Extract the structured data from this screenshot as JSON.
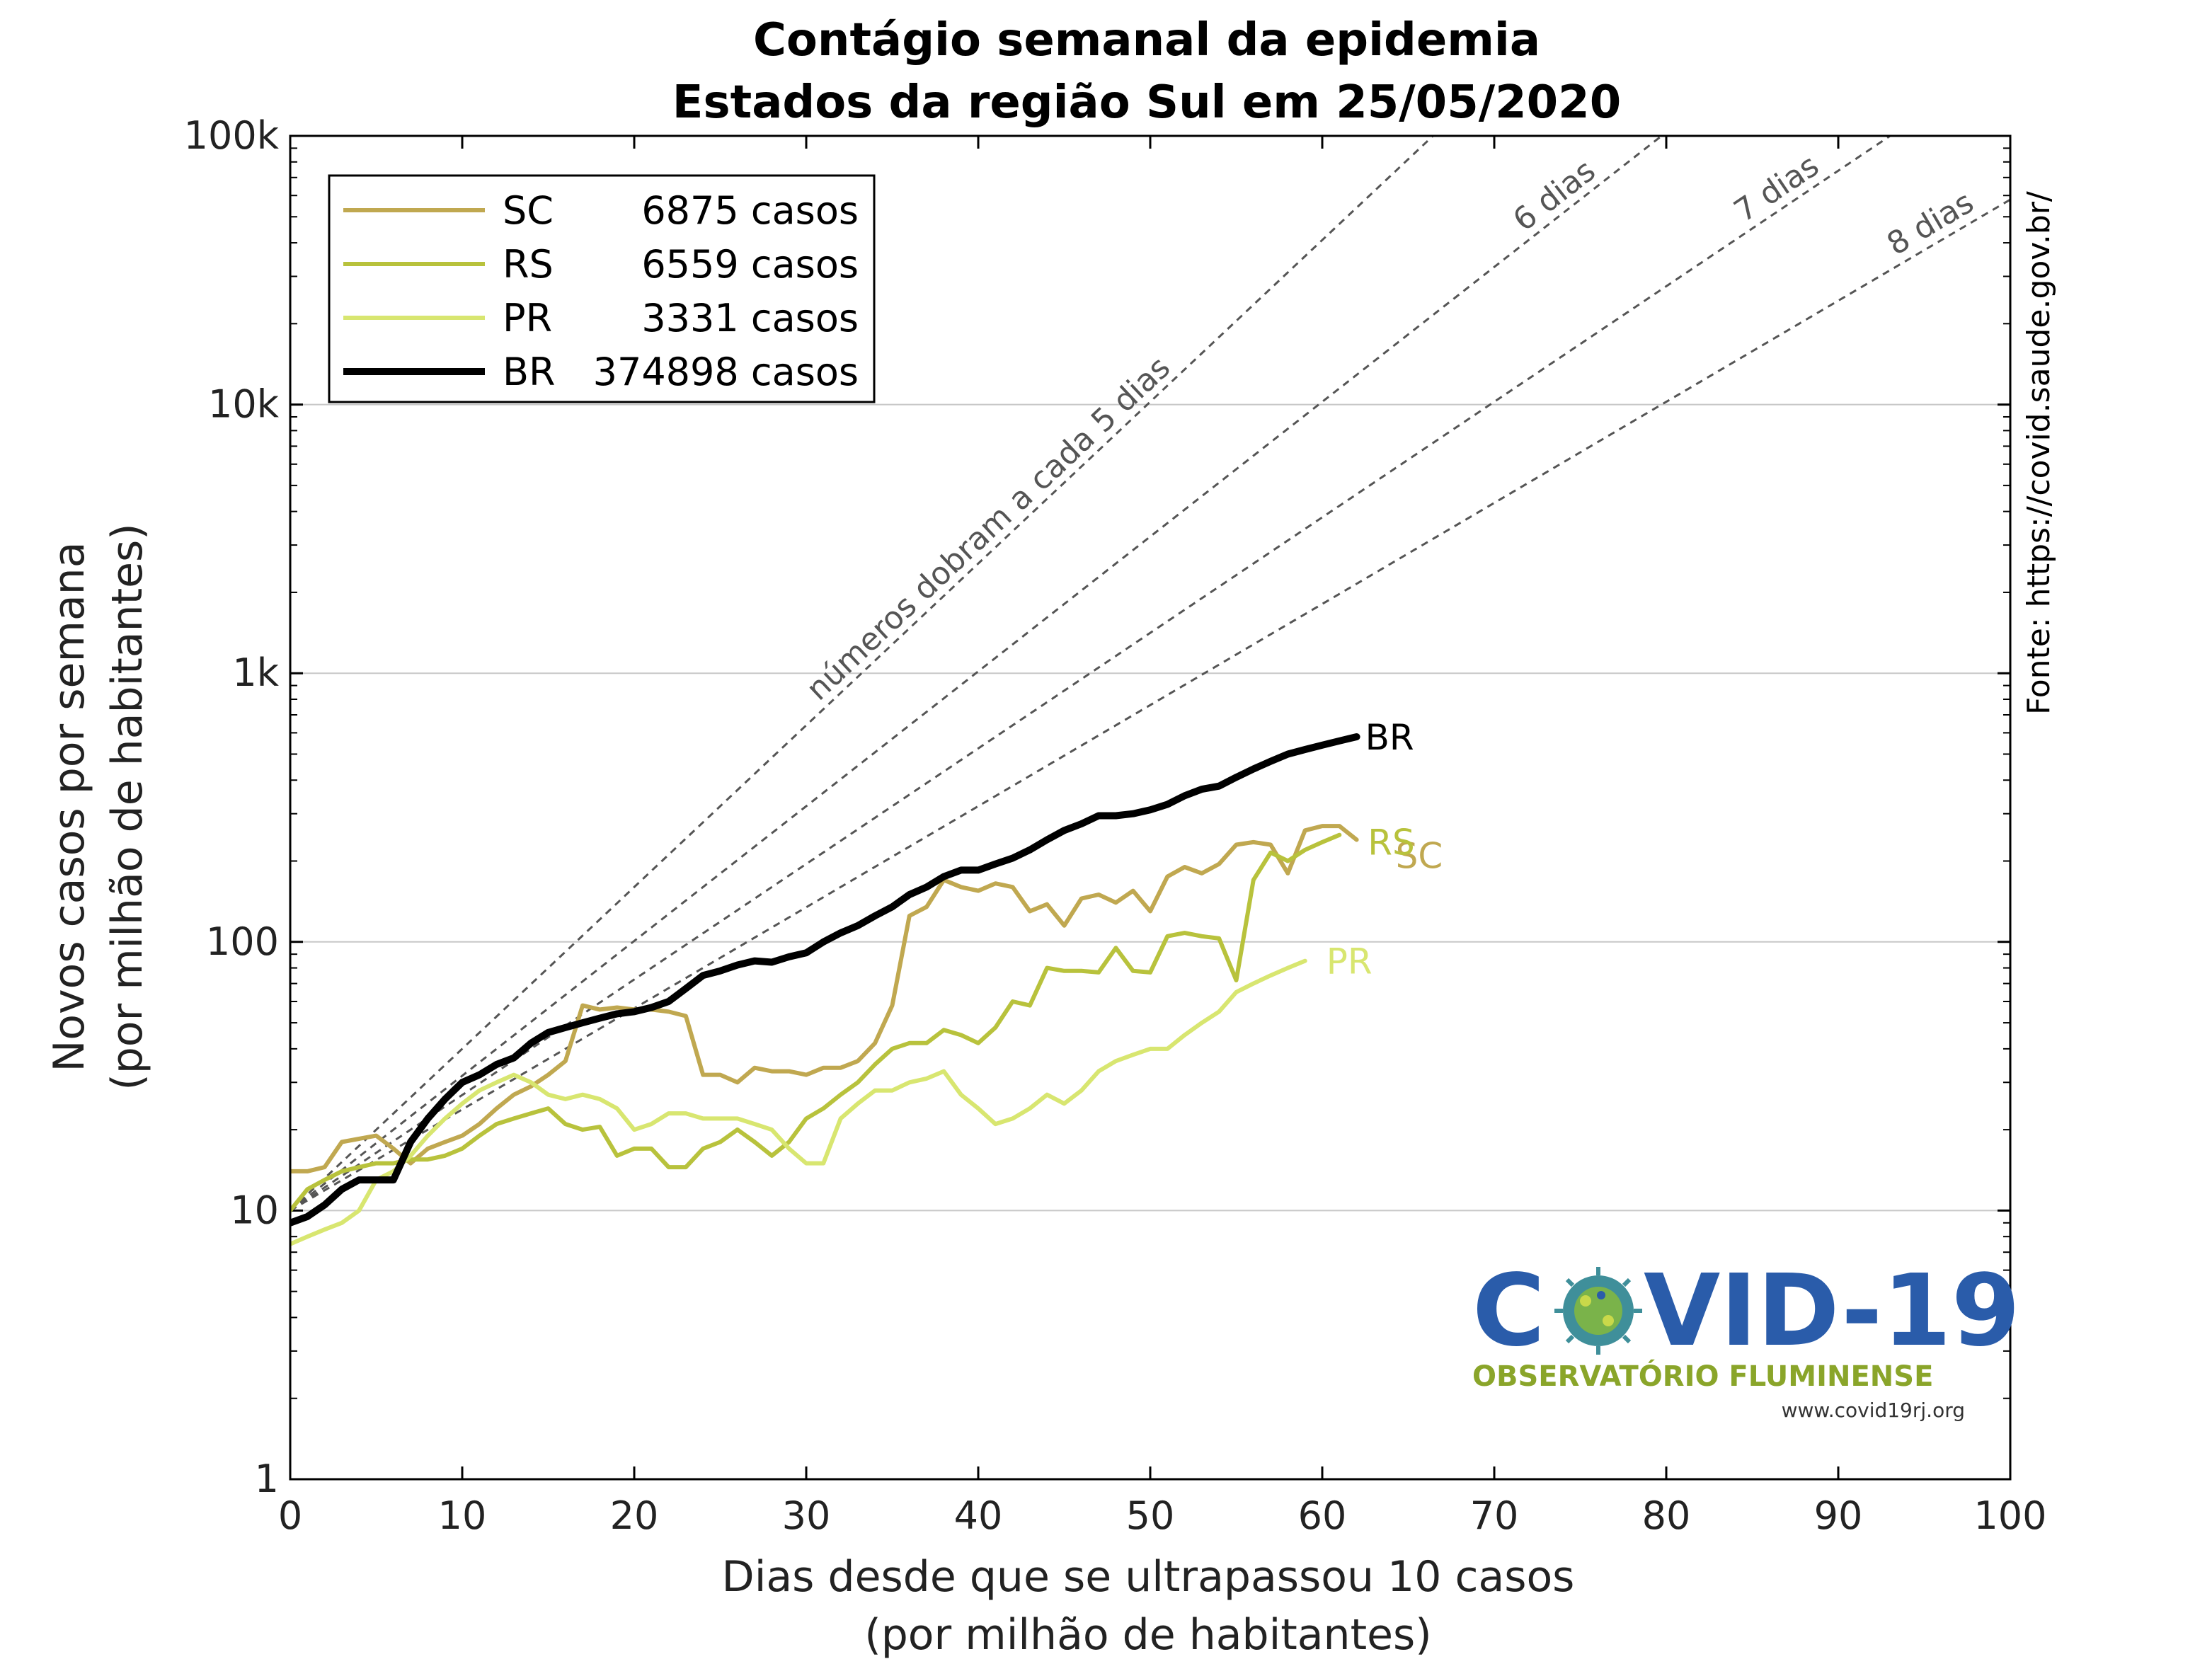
{
  "colors": {
    "SC": "#c0a850",
    "RS": "#b8c23c",
    "PR": "#d8e670",
    "BR": "#000000",
    "ref": "#555555",
    "logo_blue": "#2a5caa",
    "logo_green": "#8aa52a"
  },
  "chart_data": {
    "type": "line",
    "title": "Contágio semanal da epidemia",
    "subtitle": "Estados da região Sul em 25/05/2020",
    "xlabel_line1": "Dias desde que se ultrapassou 10 casos",
    "xlabel_line2": "(por milhão de habitantes)",
    "ylabel_line1": "Novos casos por semana",
    "ylabel_line2": "(por milhão de habitantes)",
    "xlim": [
      0,
      100
    ],
    "ylim": [
      1,
      100000
    ],
    "yscale": "log",
    "grid": "horizontal",
    "legend_position": "top-left",
    "xticks": [
      {
        "v": 0,
        "label": "0"
      },
      {
        "v": 10,
        "label": "10"
      },
      {
        "v": 20,
        "label": "20"
      },
      {
        "v": 30,
        "label": "30"
      },
      {
        "v": 40,
        "label": "40"
      },
      {
        "v": 50,
        "label": "50"
      },
      {
        "v": 60,
        "label": "60"
      },
      {
        "v": 70,
        "label": "70"
      },
      {
        "v": 80,
        "label": "80"
      },
      {
        "v": 90,
        "label": "90"
      },
      {
        "v": 100,
        "label": "100"
      }
    ],
    "yticks": [
      {
        "v": 1,
        "label": "1"
      },
      {
        "v": 10,
        "label": "10"
      },
      {
        "v": 100,
        "label": "100"
      },
      {
        "v": 1000,
        "label": "1k"
      },
      {
        "v": 10000,
        "label": "10k"
      },
      {
        "v": 100000,
        "label": "100k"
      }
    ],
    "series": [
      {
        "name": "SC",
        "cases": "6875 casos",
        "end_label": "SC",
        "x": [
          0,
          1,
          2,
          3,
          4,
          5,
          6,
          7,
          8,
          9,
          10,
          11,
          12,
          13,
          14,
          15,
          16,
          17,
          18,
          19,
          20,
          21,
          22,
          23,
          24,
          25,
          26,
          27,
          28,
          29,
          30,
          31,
          32,
          33,
          34,
          35,
          36,
          37,
          38,
          39,
          40,
          41,
          42,
          43,
          44,
          45,
          46,
          47,
          48,
          49,
          50,
          51,
          52,
          53,
          54,
          55,
          56,
          57,
          58,
          59,
          60,
          61,
          62
        ],
        "y": [
          14,
          14,
          14.5,
          18,
          18.5,
          19,
          17,
          15,
          17,
          18,
          19,
          21,
          24,
          27,
          29,
          32,
          36,
          58,
          56,
          57,
          56,
          56,
          55,
          53,
          32,
          32,
          30,
          34,
          33,
          33,
          32,
          34,
          34,
          36,
          42,
          58,
          125,
          135,
          170,
          160,
          155,
          165,
          160,
          130,
          138,
          115,
          145,
          150,
          140,
          155,
          130,
          175,
          190,
          180,
          195,
          230,
          235,
          230,
          180,
          260,
          270,
          270,
          240
        ]
      },
      {
        "name": "RS",
        "cases": "6559 casos",
        "end_label": "RS",
        "x": [
          0,
          1,
          2,
          3,
          4,
          5,
          6,
          7,
          8,
          9,
          10,
          11,
          12,
          13,
          14,
          15,
          16,
          17,
          18,
          19,
          20,
          21,
          22,
          23,
          24,
          25,
          26,
          27,
          28,
          29,
          30,
          31,
          32,
          33,
          34,
          35,
          36,
          37,
          38,
          39,
          40,
          41,
          42,
          43,
          44,
          45,
          46,
          47,
          48,
          49,
          50,
          51,
          52,
          53,
          54,
          55,
          56,
          57,
          58,
          59,
          60,
          61
        ],
        "y": [
          10,
          12,
          13,
          14,
          14.5,
          15,
          15,
          15.5,
          15.5,
          16,
          17,
          19,
          21,
          22,
          23,
          24,
          21,
          20,
          20.5,
          16,
          17,
          17,
          14.5,
          14.5,
          17,
          18,
          20,
          18,
          16,
          18,
          22,
          24,
          27,
          30,
          35,
          40,
          42,
          42,
          47,
          45,
          42,
          48,
          60,
          58,
          80,
          78,
          78,
          77,
          95,
          78,
          77,
          105,
          108,
          105,
          103,
          72,
          170,
          215,
          200,
          220,
          235,
          250
        ]
      },
      {
        "name": "PR",
        "cases": "3331 casos",
        "end_label": "PR",
        "x": [
          0,
          1,
          2,
          3,
          4,
          5,
          6,
          7,
          8,
          9,
          10,
          11,
          12,
          13,
          14,
          15,
          16,
          17,
          18,
          19,
          20,
          21,
          22,
          23,
          24,
          25,
          26,
          27,
          28,
          29,
          30,
          31,
          32,
          33,
          34,
          35,
          36,
          37,
          38,
          39,
          40,
          41,
          42,
          43,
          44,
          45,
          46,
          47,
          48,
          49,
          50,
          51,
          52,
          53,
          54,
          55,
          56,
          57,
          58,
          59
        ],
        "y": [
          7.5,
          8,
          8.5,
          9,
          10,
          13,
          14,
          16,
          19,
          22,
          25,
          28,
          30,
          32,
          30,
          27,
          26,
          27,
          26,
          24,
          20,
          21,
          23,
          23,
          22,
          22,
          22,
          21,
          20,
          17,
          15,
          15,
          22,
          25,
          28,
          28,
          30,
          31,
          33,
          27,
          24,
          21,
          22,
          24,
          27,
          25,
          28,
          33,
          36,
          38,
          40,
          40,
          45,
          50,
          55,
          65,
          70,
          75,
          80,
          85
        ]
      },
      {
        "name": "BR",
        "cases": "374898 casos",
        "end_label": "BR",
        "x": [
          0,
          1,
          2,
          3,
          4,
          5,
          6,
          7,
          8,
          9,
          10,
          11,
          12,
          13,
          14,
          15,
          16,
          17,
          18,
          19,
          20,
          21,
          22,
          23,
          24,
          25,
          26,
          27,
          28,
          29,
          30,
          31,
          32,
          33,
          34,
          35,
          36,
          37,
          38,
          39,
          40,
          41,
          42,
          43,
          44,
          45,
          46,
          47,
          48,
          49,
          50,
          51,
          52,
          53,
          54,
          55,
          56,
          57,
          58,
          59,
          60,
          61,
          62
        ],
        "y": [
          9,
          9.5,
          10.5,
          12,
          13,
          13,
          13,
          18,
          22,
          26,
          30,
          32,
          35,
          37,
          42,
          46,
          48,
          50,
          52,
          54,
          55,
          57,
          60,
          67,
          75,
          78,
          82,
          85,
          84,
          88,
          91,
          100,
          108,
          115,
          125,
          135,
          150,
          160,
          175,
          185,
          185,
          195,
          205,
          220,
          240,
          260,
          275,
          295,
          295,
          300,
          310,
          325,
          350,
          370,
          380,
          410,
          440,
          470,
          500,
          520,
          540,
          560,
          580
        ]
      }
    ],
    "reference_lines": [
      {
        "doubling_days": 5,
        "label": "números dobram a cada 5 dias"
      },
      {
        "doubling_days": 6,
        "label": "6 dias"
      },
      {
        "doubling_days": 7,
        "label": "7 dias"
      },
      {
        "doubling_days": 8,
        "label": "8 dias"
      }
    ],
    "source": "Fonte: https://covid.saude.gov.br/"
  },
  "logo": {
    "title_left": "C",
    "title_right": "VID-19",
    "subtitle": "OBSERVATÓRIO FLUMINENSE",
    "url": "www.covid19rj.org"
  }
}
